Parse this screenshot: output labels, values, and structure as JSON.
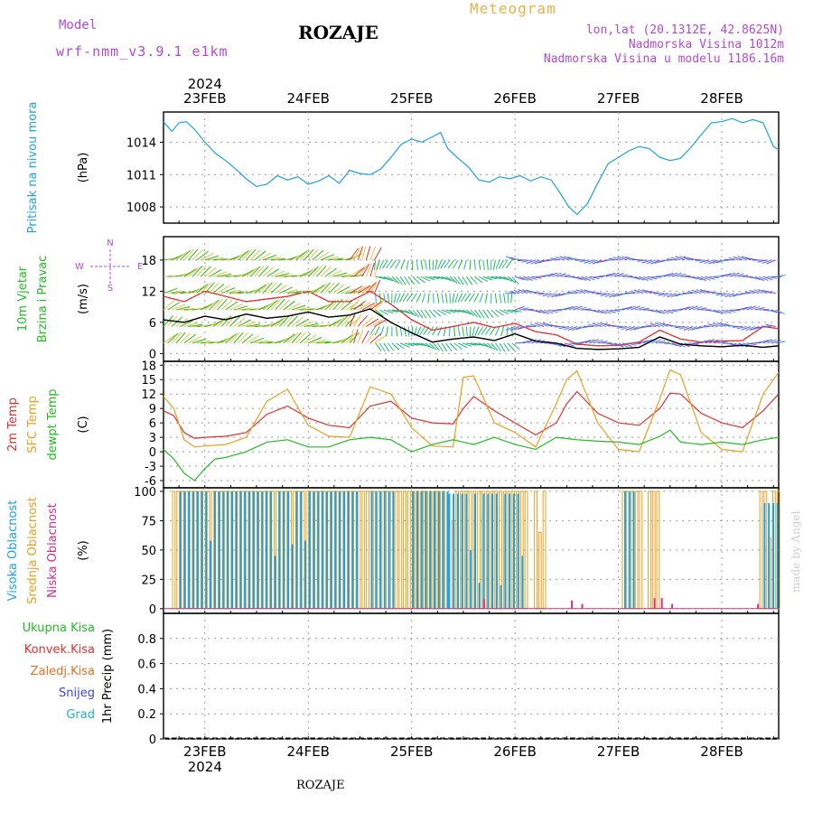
{
  "header": {
    "model_label": "Model",
    "model_name": "wrf-nmm_v3.9.1 e1km",
    "station": "ROZAJE",
    "title": "Meteogram",
    "coords": "lon,lat (20.1312E, 42.8625N)",
    "elevation": "Nadmorska Visina 1012m",
    "model_elevation": "Nadmorska Visina u modelu 1186.16m",
    "footer_station": "ROZAJE",
    "watermark": "made by Angel"
  },
  "chart_data": {
    "type": "line",
    "time_axis": {
      "year": "2024",
      "ticks": [
        "23FEB",
        "24FEB",
        "25FEB",
        "26FEB",
        "27FEB",
        "28FEB"
      ],
      "start_day": 22.6,
      "end_day": 28.55
    },
    "panels": [
      {
        "id": "pressure",
        "labels": [
          "Pritisak na nivou mora"
        ],
        "label_colors": [
          "#1ea0e0"
        ],
        "unit": "(hPa)",
        "ylim": [
          1006.5,
          1016.8
        ],
        "yticks": [
          1008,
          1011,
          1014
        ],
        "series": [
          {
            "color": "#1ea0e0",
            "x": [
              22.6,
              22.68,
              22.75,
              22.82,
              22.9,
              23.0,
              23.1,
              23.2,
              23.3,
              23.4,
              23.5,
              23.6,
              23.7,
              23.8,
              23.9,
              24.0,
              24.1,
              24.2,
              24.3,
              24.4,
              24.5,
              24.6,
              24.7,
              24.8,
              24.9,
              25.0,
              25.1,
              25.2,
              25.28,
              25.35,
              25.45,
              25.55,
              25.65,
              25.75,
              25.85,
              25.95,
              26.05,
              26.15,
              26.25,
              26.35,
              26.45,
              26.52,
              26.6,
              26.7,
              26.8,
              26.9,
              27.0,
              27.1,
              27.2,
              27.3,
              27.4,
              27.5,
              27.6,
              27.7,
              27.8,
              27.9,
              28.0,
              28.1,
              28.2,
              28.3,
              28.4,
              28.5,
              28.55
            ],
            "y": [
              1015.9,
              1015.0,
              1015.8,
              1015.9,
              1015.2,
              1014.0,
              1013.0,
              1012.3,
              1011.5,
              1010.6,
              1009.9,
              1010.1,
              1010.9,
              1010.5,
              1010.8,
              1010.1,
              1010.4,
              1010.9,
              1010.2,
              1011.4,
              1011.1,
              1011.0,
              1011.5,
              1012.6,
              1013.8,
              1014.3,
              1014.0,
              1014.5,
              1014.9,
              1013.4,
              1012.5,
              1011.7,
              1010.5,
              1010.3,
              1010.8,
              1010.6,
              1010.9,
              1010.4,
              1010.8,
              1010.5,
              1009.1,
              1008.0,
              1007.3,
              1008.3,
              1010.2,
              1012.0,
              1012.6,
              1013.2,
              1013.6,
              1013.4,
              1012.6,
              1012.3,
              1012.5,
              1013.5,
              1014.7,
              1015.8,
              1015.9,
              1016.2,
              1015.8,
              1016.1,
              1015.8,
              1013.6,
              1013.3
            ]
          }
        ]
      },
      {
        "id": "wind",
        "labels": [
          "10m Vjetar",
          "Brzina i Pravac"
        ],
        "label_colors": [
          "#22bb22",
          "#22bb22"
        ],
        "unit": "(m/s)",
        "ylim": [
          -1.5,
          22.5
        ],
        "yticks": [
          0,
          6,
          12,
          18
        ],
        "compass": {
          "n": "N",
          "s": "S",
          "e": "E",
          "w": "W"
        },
        "series": [
          {
            "color": "#000000",
            "x": [
              22.6,
              22.8,
              23.0,
              23.2,
              23.4,
              23.6,
              23.8,
              24.0,
              24.2,
              24.4,
              24.6,
              24.8,
              25.0,
              25.2,
              25.4,
              25.6,
              25.8,
              26.0,
              26.2,
              26.4,
              26.6,
              26.8,
              27.0,
              27.2,
              27.4,
              27.6,
              27.8,
              28.0,
              28.2,
              28.4,
              28.55
            ],
            "y": [
              6.5,
              6.0,
              7.2,
              6.5,
              7.6,
              6.8,
              7.2,
              8.0,
              7.0,
              7.4,
              8.6,
              6.0,
              4.0,
              2.2,
              2.8,
              3.2,
              2.5,
              3.8,
              2.4,
              2.0,
              1.0,
              0.8,
              0.9,
              1.2,
              3.2,
              1.8,
              1.5,
              1.3,
              1.6,
              1.2,
              1.5
            ]
          },
          {
            "color": "#e03030",
            "x": [
              22.6,
              22.8,
              23.0,
              23.2,
              23.4,
              23.6,
              23.8,
              24.0,
              24.2,
              24.4,
              24.6,
              24.8,
              25.0,
              25.2,
              25.4,
              25.6,
              25.8,
              26.0,
              26.2,
              26.4,
              26.6,
              26.8,
              27.0,
              27.2,
              27.4,
              27.6,
              27.8,
              28.0,
              28.2,
              28.4,
              28.55
            ],
            "y": [
              11,
              10,
              12,
              11,
              10,
              10.5,
              11,
              12,
              10,
              10,
              12,
              9.5,
              6.5,
              4.5,
              5.2,
              6,
              5,
              5.8,
              4.2,
              3.6,
              1.8,
              1.5,
              1.6,
              2.2,
              4.5,
              2.8,
              2.2,
              2.4,
              2.5,
              5.2,
              4.8
            ]
          }
        ],
        "regimes": [
          {
            "from": 22.6,
            "to": 24.4,
            "colors": [
              "#22bb22",
              "#e8c040"
            ]
          },
          {
            "from": 24.4,
            "to": 24.65,
            "colors": [
              "#e8c040",
              "#e03030"
            ]
          },
          {
            "from": 24.65,
            "to": 26.0,
            "colors": [
              "#22bb22",
              "#20b0d0"
            ]
          },
          {
            "from": 26.0,
            "to": 28.55,
            "colors": [
              "#a030d0",
              "#20a0e0"
            ]
          }
        ]
      },
      {
        "id": "temperature",
        "labels": [
          "2m Temp",
          "SFC Temp",
          "dewpt Temp"
        ],
        "label_colors": [
          "#e03030",
          "#e8a020",
          "#22bb22"
        ],
        "unit": "(C)",
        "ylim": [
          -7.5,
          18.8
        ],
        "yticks": [
          -6,
          -3,
          0,
          3,
          6,
          9,
          12,
          15,
          18
        ],
        "series": [
          {
            "name": "2m",
            "color": "#e03030",
            "x": [
              22.6,
              22.7,
              22.8,
              22.9,
              23.0,
              23.2,
              23.4,
              23.6,
              23.8,
              24.0,
              24.2,
              24.4,
              24.6,
              24.8,
              25.0,
              25.2,
              25.4,
              25.5,
              25.6,
              25.8,
              26.0,
              26.2,
              26.4,
              26.5,
              26.6,
              26.8,
              27.0,
              27.2,
              27.4,
              27.5,
              27.6,
              27.8,
              28.0,
              28.2,
              28.4,
              28.55
            ],
            "y": [
              8.5,
              7.5,
              4.0,
              2.8,
              3.0,
              3.2,
              4.0,
              7.8,
              9.5,
              7.0,
              5.5,
              5.0,
              9.5,
              10.5,
              7.0,
              6.0,
              5.8,
              9.0,
              11.5,
              8.5,
              6.0,
              3.5,
              6.0,
              10.0,
              12.5,
              8.0,
              6.0,
              5.5,
              9.0,
              12.2,
              12.0,
              8.0,
              6.0,
              5.0,
              8.5,
              12.0
            ]
          },
          {
            "name": "sfc",
            "color": "#e8a020",
            "x": [
              22.6,
              22.7,
              22.8,
              22.9,
              23.0,
              23.2,
              23.4,
              23.6,
              23.8,
              24.0,
              24.2,
              24.4,
              24.6,
              24.8,
              25.0,
              25.2,
              25.4,
              25.5,
              25.6,
              25.8,
              26.0,
              26.2,
              26.4,
              26.5,
              26.6,
              26.8,
              27.0,
              27.2,
              27.4,
              27.5,
              27.6,
              27.8,
              28.0,
              28.2,
              28.4,
              28.55
            ],
            "y": [
              11.5,
              9.0,
              2.5,
              1.0,
              1.2,
              1.5,
              3.0,
              10.5,
              13.0,
              5.5,
              3.2,
              3.0,
              13.5,
              12.0,
              5.0,
              1.2,
              1.0,
              15.5,
              15.8,
              6.0,
              4.0,
              1.0,
              10.0,
              15.0,
              16.8,
              6.0,
              0.5,
              0.0,
              11.0,
              17.0,
              16.0,
              4.0,
              0.5,
              0.0,
              12.0,
              16.5
            ]
          },
          {
            "name": "dew",
            "color": "#22bb22",
            "x": [
              22.6,
              22.7,
              22.8,
              22.9,
              23.0,
              23.1,
              23.2,
              23.4,
              23.6,
              23.8,
              24.0,
              24.2,
              24.4,
              24.6,
              24.8,
              25.0,
              25.2,
              25.4,
              25.6,
              25.8,
              26.0,
              26.2,
              26.4,
              26.6,
              26.8,
              27.0,
              27.2,
              27.4,
              27.5,
              27.6,
              27.8,
              28.0,
              28.2,
              28.4,
              28.55
            ],
            "y": [
              0.5,
              -1.5,
              -4.5,
              -6.0,
              -3.5,
              -1.5,
              -1.2,
              0.0,
              2.0,
              2.5,
              1.0,
              1.0,
              2.5,
              3.0,
              2.5,
              0.0,
              1.5,
              2.5,
              1.5,
              3.0,
              1.5,
              0.5,
              3.0,
              2.5,
              2.2,
              2.0,
              1.5,
              3.2,
              4.5,
              2.0,
              1.5,
              2.0,
              1.5,
              2.5,
              3.0
            ]
          }
        ]
      },
      {
        "id": "cloud",
        "labels": [
          "Visoka Oblacnost",
          "Srednja Oblacnost",
          "Niska Oblacnost"
        ],
        "label_colors": [
          "#1ea0e0",
          "#e8a020",
          "#d0308a"
        ],
        "unit": "(%)",
        "ylim": [
          -4,
          103
        ],
        "yticks": [
          0,
          25,
          50,
          75,
          100
        ],
        "high": {
          "color": "#1ea0e0",
          "spans": [
            {
              "from": 22.75,
              "to": 24.5,
              "value": 100
            },
            {
              "from": 24.6,
              "to": 24.85,
              "value": 100
            },
            {
              "from": 25.0,
              "to": 25.35,
              "value": 100
            },
            {
              "from": 25.35,
              "to": 26.1,
              "value": 98
            },
            {
              "from": 27.05,
              "to": 27.15,
              "value": 100
            },
            {
              "from": 28.4,
              "to": 28.55,
              "value": 90
            }
          ],
          "dips": [
            {
              "x": 23.05,
              "value": 58
            },
            {
              "x": 23.65,
              "value": 45
            },
            {
              "x": 23.85,
              "value": 55
            },
            {
              "x": 23.95,
              "value": 58
            },
            {
              "x": 25.55,
              "value": 50
            },
            {
              "x": 25.65,
              "value": 22
            },
            {
              "x": 25.85,
              "value": 20
            },
            {
              "x": 26.05,
              "value": 45
            },
            {
              "x": 27.2,
              "value": 52
            }
          ]
        },
        "mid": {
          "color": "#e8a020",
          "spans": [
            {
              "from": 22.7,
              "to": 24.6,
              "value": 100
            },
            {
              "from": 24.6,
              "to": 25.35,
              "value": 100
            },
            {
              "from": 25.4,
              "to": 26.15,
              "value": 100
            },
            {
              "from": 26.2,
              "to": 26.3,
              "value": 100
            },
            {
              "from": 27.05,
              "to": 27.25,
              "value": 100
            },
            {
              "from": 27.3,
              "to": 27.4,
              "value": 100
            },
            {
              "from": 28.38,
              "to": 28.55,
              "value": 100
            }
          ],
          "dips": [
            {
              "x": 25.4,
              "value": 75
            },
            {
              "x": 26.25,
              "value": 65
            },
            {
              "x": 28.45,
              "value": 60
            }
          ]
        },
        "low": {
          "color": "#d0308a",
          "spans": [],
          "dips": [
            {
              "x": 25.7,
              "value": 8
            },
            {
              "x": 26.55,
              "value": 7
            },
            {
              "x": 26.65,
              "value": 4
            },
            {
              "x": 27.35,
              "value": 9
            },
            {
              "x": 27.42,
              "value": 9
            },
            {
              "x": 27.52,
              "value": 4
            },
            {
              "x": 28.35,
              "value": 4
            }
          ]
        }
      },
      {
        "id": "precip",
        "labels": [
          "Ukupna Kisa",
          "Konvek.Kisa",
          "Zaledj.Kisa",
          "Snijeg",
          "Grad"
        ],
        "label_colors": [
          "#22bb22",
          "#e03030",
          "#e87020",
          "#4040e0",
          "#20b0c0"
        ],
        "unit": "1hr Precip (mm)",
        "ylim": [
          0,
          1.0
        ],
        "yticks": [
          0,
          0.2,
          0.4,
          0.6,
          0.8
        ],
        "series": []
      }
    ]
  }
}
